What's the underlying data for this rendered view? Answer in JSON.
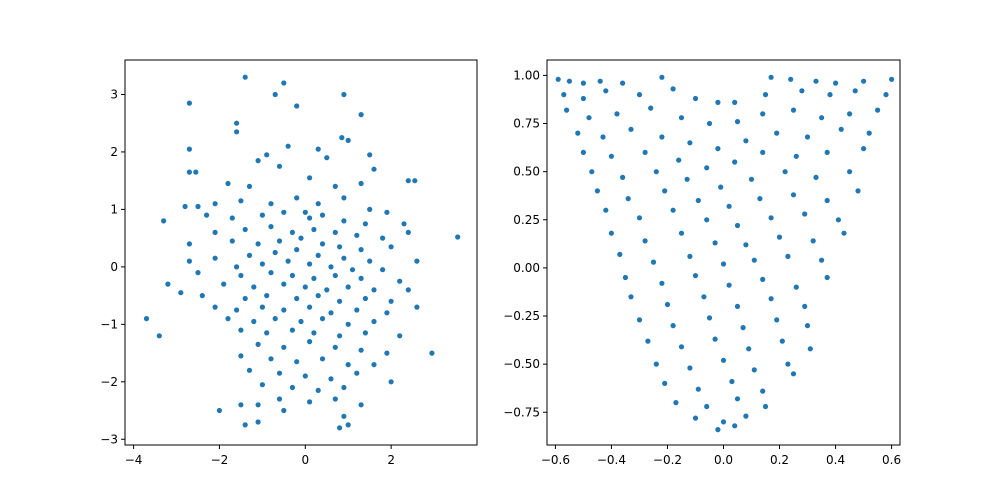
{
  "chart_data": [
    {
      "type": "scatter",
      "title": "",
      "xlabel": "",
      "ylabel": "",
      "xlim": [
        -4.2,
        4.0
      ],
      "ylim": [
        -3.1,
        3.6
      ],
      "xticks": [
        -4,
        -2,
        0,
        2
      ],
      "xtick_labels": [
        "−4",
        "−2",
        "0",
        "2"
      ],
      "yticks": [
        -3,
        -2,
        -1,
        0,
        1,
        2,
        3
      ],
      "ytick_labels": [
        "−3",
        "−2",
        "−1",
        "0",
        "1",
        "2",
        "3"
      ],
      "grid": false,
      "marker_color": "#1f77b4",
      "points": [
        [
          -1.4,
          3.3
        ],
        [
          -0.5,
          3.2
        ],
        [
          0.9,
          3.0
        ],
        [
          -2.7,
          2.85
        ],
        [
          -0.7,
          3.0
        ],
        [
          -0.2,
          2.8
        ],
        [
          1.3,
          2.65
        ],
        [
          -1.6,
          2.5
        ],
        [
          -1.6,
          2.35
        ],
        [
          -2.7,
          2.05
        ],
        [
          0.85,
          2.25
        ],
        [
          1.0,
          2.2
        ],
        [
          -0.9,
          1.95
        ],
        [
          -0.4,
          2.1
        ],
        [
          0.3,
          2.05
        ],
        [
          1.5,
          1.95
        ],
        [
          -1.1,
          1.85
        ],
        [
          -2.7,
          1.65
        ],
        [
          -2.55,
          1.65
        ],
        [
          -0.6,
          1.75
        ],
        [
          0.5,
          1.9
        ],
        [
          1.6,
          1.7
        ],
        [
          2.4,
          1.5
        ],
        [
          2.55,
          1.5
        ],
        [
          -1.8,
          1.45
        ],
        [
          -1.3,
          1.4
        ],
        [
          0.1,
          1.55
        ],
        [
          0.7,
          1.4
        ],
        [
          1.3,
          1.45
        ],
        [
          -2.8,
          1.05
        ],
        [
          -2.5,
          1.05
        ],
        [
          -2.1,
          1.1
        ],
        [
          -1.5,
          1.15
        ],
        [
          -0.8,
          1.1
        ],
        [
          -0.2,
          1.2
        ],
        [
          0.3,
          1.1
        ],
        [
          0.9,
          1.2
        ],
        [
          1.5,
          1.0
        ],
        [
          1.9,
          0.95
        ],
        [
          -3.3,
          0.8
        ],
        [
          -2.3,
          0.9
        ],
        [
          -1.7,
          0.85
        ],
        [
          -1.0,
          0.9
        ],
        [
          -0.5,
          0.95
        ],
        [
          0.0,
          0.95
        ],
        [
          0.1,
          0.85
        ],
        [
          0.4,
          0.9
        ],
        [
          0.9,
          0.8
        ],
        [
          1.4,
          0.75
        ],
        [
          2.3,
          0.75
        ],
        [
          2.4,
          0.6
        ],
        [
          3.55,
          0.52
        ],
        [
          -2.1,
          0.6
        ],
        [
          -1.4,
          0.65
        ],
        [
          -0.8,
          0.7
        ],
        [
          -0.3,
          0.6
        ],
        [
          0.2,
          0.65
        ],
        [
          0.7,
          0.6
        ],
        [
          1.2,
          0.55
        ],
        [
          1.8,
          0.5
        ],
        [
          -2.7,
          0.4
        ],
        [
          -1.7,
          0.45
        ],
        [
          -1.1,
          0.4
        ],
        [
          -0.6,
          0.45
        ],
        [
          -0.1,
          0.5
        ],
        [
          0.4,
          0.4
        ],
        [
          0.8,
          0.35
        ],
        [
          1.3,
          0.3
        ],
        [
          2.0,
          0.35
        ],
        [
          -2.1,
          0.15
        ],
        [
          -1.3,
          0.2
        ],
        [
          -0.7,
          0.25
        ],
        [
          -0.2,
          0.3
        ],
        [
          0.3,
          0.2
        ],
        [
          0.9,
          0.15
        ],
        [
          1.5,
          0.1
        ],
        [
          2.6,
          0.1
        ],
        [
          -2.7,
          0.1
        ],
        [
          -1.6,
          0.0
        ],
        [
          -1.0,
          0.05
        ],
        [
          -0.4,
          0.1
        ],
        [
          0.1,
          0.05
        ],
        [
          0.6,
          0.0
        ],
        [
          1.1,
          -0.05
        ],
        [
          1.8,
          -0.05
        ],
        [
          -2.5,
          -0.1
        ],
        [
          -1.5,
          -0.15
        ],
        [
          -0.8,
          -0.1
        ],
        [
          -0.3,
          -0.15
        ],
        [
          0.2,
          -0.2
        ],
        [
          0.7,
          -0.15
        ],
        [
          1.3,
          -0.2
        ],
        [
          2.2,
          -0.25
        ],
        [
          -3.2,
          -0.3
        ],
        [
          -1.9,
          -0.3
        ],
        [
          -1.2,
          -0.35
        ],
        [
          -0.5,
          -0.3
        ],
        [
          0.0,
          -0.35
        ],
        [
          0.5,
          -0.4
        ],
        [
          1.0,
          -0.35
        ],
        [
          1.6,
          -0.4
        ],
        [
          2.4,
          -0.4
        ],
        [
          -2.4,
          -0.5
        ],
        [
          -1.4,
          -0.55
        ],
        [
          -0.9,
          -0.5
        ],
        [
          -0.2,
          -0.55
        ],
        [
          0.3,
          -0.5
        ],
        [
          0.8,
          -0.6
        ],
        [
          1.4,
          -0.55
        ],
        [
          2.0,
          -0.6
        ],
        [
          -2.9,
          -0.45
        ],
        [
          -2.1,
          -0.7
        ],
        [
          -1.6,
          -0.75
        ],
        [
          -1.0,
          -0.7
        ],
        [
          -0.5,
          -0.75
        ],
        [
          0.1,
          -0.7
        ],
        [
          0.6,
          -0.8
        ],
        [
          1.2,
          -0.75
        ],
        [
          1.9,
          -0.8
        ],
        [
          2.6,
          -0.7
        ],
        [
          -1.8,
          -0.9
        ],
        [
          -1.2,
          -0.95
        ],
        [
          -0.7,
          -0.9
        ],
        [
          -0.1,
          -0.95
        ],
        [
          0.4,
          -0.9
        ],
        [
          1.0,
          -1.0
        ],
        [
          1.6,
          -0.95
        ],
        [
          -3.7,
          -0.9
        ],
        [
          -1.5,
          -1.1
        ],
        [
          -0.9,
          -1.15
        ],
        [
          -0.3,
          -1.1
        ],
        [
          0.2,
          -1.15
        ],
        [
          0.8,
          -1.2
        ],
        [
          1.4,
          -1.15
        ],
        [
          2.2,
          -1.2
        ],
        [
          -3.4,
          -1.2
        ],
        [
          -1.1,
          -1.35
        ],
        [
          -0.5,
          -1.4
        ],
        [
          0.1,
          -1.3
        ],
        [
          0.7,
          -1.4
        ],
        [
          1.3,
          -1.45
        ],
        [
          1.9,
          -1.5
        ],
        [
          -1.5,
          -1.55
        ],
        [
          -0.8,
          -1.6
        ],
        [
          -0.2,
          -1.65
        ],
        [
          0.4,
          -1.6
        ],
        [
          1.0,
          -1.7
        ],
        [
          1.6,
          -1.7
        ],
        [
          2.95,
          -1.5
        ],
        [
          -1.3,
          -1.8
        ],
        [
          -0.6,
          -1.85
        ],
        [
          0.0,
          -1.9
        ],
        [
          0.6,
          -1.95
        ],
        [
          1.2,
          -1.85
        ],
        [
          2.0,
          -2.0
        ],
        [
          -1.0,
          -2.05
        ],
        [
          -0.3,
          -2.1
        ],
        [
          0.3,
          -2.15
        ],
        [
          0.9,
          -2.1
        ],
        [
          -0.6,
          -2.3
        ],
        [
          0.1,
          -2.35
        ],
        [
          0.7,
          -2.3
        ],
        [
          -2.0,
          -2.5
        ],
        [
          -0.5,
          -2.5
        ],
        [
          1.3,
          -2.4
        ],
        [
          -1.5,
          -2.4
        ],
        [
          -1.1,
          -2.4
        ],
        [
          0.9,
          -2.6
        ],
        [
          -1.4,
          -2.75
        ],
        [
          -1.1,
          -2.7
        ],
        [
          0.8,
          -2.8
        ],
        [
          1.0,
          -2.75
        ]
      ]
    },
    {
      "type": "scatter",
      "title": "",
      "xlabel": "",
      "ylabel": "",
      "xlim": [
        -0.63,
        0.63
      ],
      "ylim": [
        -0.92,
        1.08
      ],
      "xticks": [
        -0.6,
        -0.4,
        -0.2,
        0.0,
        0.2,
        0.4,
        0.6
      ],
      "xtick_labels": [
        "−0.6",
        "−0.4",
        "−0.2",
        "0.0",
        "0.2",
        "0.4",
        "0.6"
      ],
      "yticks": [
        -0.75,
        -0.5,
        -0.25,
        0.0,
        0.25,
        0.5,
        0.75,
        1.0
      ],
      "ytick_labels": [
        "−0.75",
        "−0.50",
        "−0.25",
        "0.00",
        "0.25",
        "0.50",
        "0.75",
        "1.00"
      ],
      "grid": false,
      "marker_color": "#1f77b4",
      "points": [
        [
          -0.59,
          0.98
        ],
        [
          -0.55,
          0.97
        ],
        [
          -0.5,
          0.96
        ],
        [
          -0.44,
          0.97
        ],
        [
          -0.36,
          0.96
        ],
        [
          -0.22,
          0.99
        ],
        [
          0.17,
          0.99
        ],
        [
          0.24,
          0.98
        ],
        [
          0.33,
          0.97
        ],
        [
          0.4,
          0.96
        ],
        [
          0.5,
          0.97
        ],
        [
          0.6,
          0.98
        ],
        [
          -0.57,
          0.9
        ],
        [
          -0.5,
          0.88
        ],
        [
          -0.42,
          0.92
        ],
        [
          -0.3,
          0.9
        ],
        [
          -0.18,
          0.93
        ],
        [
          -0.1,
          0.88
        ],
        [
          -0.02,
          0.86
        ],
        [
          0.04,
          0.86
        ],
        [
          0.15,
          0.9
        ],
        [
          0.28,
          0.92
        ],
        [
          0.38,
          0.9
        ],
        [
          0.47,
          0.92
        ],
        [
          0.58,
          0.9
        ],
        [
          -0.56,
          0.82
        ],
        [
          -0.48,
          0.78
        ],
        [
          -0.38,
          0.8
        ],
        [
          -0.26,
          0.83
        ],
        [
          -0.15,
          0.78
        ],
        [
          -0.05,
          0.75
        ],
        [
          0.05,
          0.76
        ],
        [
          0.14,
          0.8
        ],
        [
          0.25,
          0.82
        ],
        [
          0.35,
          0.78
        ],
        [
          0.45,
          0.8
        ],
        [
          0.55,
          0.82
        ],
        [
          -0.52,
          0.7
        ],
        [
          -0.43,
          0.68
        ],
        [
          -0.33,
          0.72
        ],
        [
          -0.22,
          0.68
        ],
        [
          -0.12,
          0.65
        ],
        [
          -0.02,
          0.62
        ],
        [
          0.08,
          0.66
        ],
        [
          0.19,
          0.7
        ],
        [
          0.3,
          0.68
        ],
        [
          0.42,
          0.72
        ],
        [
          0.52,
          0.7
        ],
        [
          -0.5,
          0.6
        ],
        [
          -0.4,
          0.58
        ],
        [
          -0.28,
          0.6
        ],
        [
          -0.16,
          0.56
        ],
        [
          -0.06,
          0.52
        ],
        [
          0.04,
          0.55
        ],
        [
          0.14,
          0.6
        ],
        [
          0.26,
          0.58
        ],
        [
          0.37,
          0.6
        ],
        [
          0.5,
          0.62
        ],
        [
          -0.47,
          0.5
        ],
        [
          -0.36,
          0.47
        ],
        [
          -0.24,
          0.5
        ],
        [
          -0.13,
          0.46
        ],
        [
          -0.01,
          0.42
        ],
        [
          0.1,
          0.46
        ],
        [
          0.22,
          0.5
        ],
        [
          0.33,
          0.47
        ],
        [
          0.45,
          0.5
        ],
        [
          -0.45,
          0.4
        ],
        [
          -0.34,
          0.36
        ],
        [
          -0.21,
          0.4
        ],
        [
          -0.09,
          0.35
        ],
        [
          0.02,
          0.32
        ],
        [
          0.13,
          0.36
        ],
        [
          0.25,
          0.38
        ],
        [
          0.37,
          0.35
        ],
        [
          0.48,
          0.4
        ],
        [
          -0.42,
          0.3
        ],
        [
          -0.3,
          0.26
        ],
        [
          -0.18,
          0.3
        ],
        [
          -0.06,
          0.25
        ],
        [
          0.05,
          0.22
        ],
        [
          0.17,
          0.26
        ],
        [
          0.29,
          0.28
        ],
        [
          0.41,
          0.25
        ],
        [
          -0.4,
          0.18
        ],
        [
          -0.28,
          0.14
        ],
        [
          -0.15,
          0.18
        ],
        [
          -0.03,
          0.13
        ],
        [
          0.08,
          0.12
        ],
        [
          0.2,
          0.16
        ],
        [
          0.32,
          0.14
        ],
        [
          0.43,
          0.18
        ],
        [
          -0.37,
          0.07
        ],
        [
          -0.25,
          0.03
        ],
        [
          -0.12,
          0.06
        ],
        [
          0.0,
          0.02
        ],
        [
          0.11,
          0.04
        ],
        [
          0.23,
          0.06
        ],
        [
          0.35,
          0.04
        ],
        [
          -0.35,
          -0.05
        ],
        [
          -0.22,
          -0.08
        ],
        [
          -0.1,
          -0.04
        ],
        [
          0.02,
          -0.09
        ],
        [
          0.14,
          -0.06
        ],
        [
          0.26,
          -0.1
        ],
        [
          0.37,
          -0.05
        ],
        [
          -0.33,
          -0.15
        ],
        [
          -0.2,
          -0.19
        ],
        [
          -0.07,
          -0.15
        ],
        [
          0.05,
          -0.2
        ],
        [
          0.17,
          -0.16
        ],
        [
          0.29,
          -0.2
        ],
        [
          -0.3,
          -0.27
        ],
        [
          -0.18,
          -0.3
        ],
        [
          -0.05,
          -0.26
        ],
        [
          0.07,
          -0.31
        ],
        [
          0.19,
          -0.27
        ],
        [
          0.3,
          -0.3
        ],
        [
          -0.27,
          -0.38
        ],
        [
          -0.15,
          -0.41
        ],
        [
          -0.03,
          -0.37
        ],
        [
          0.09,
          -0.42
        ],
        [
          0.21,
          -0.38
        ],
        [
          0.31,
          -0.42
        ],
        [
          -0.24,
          -0.5
        ],
        [
          -0.12,
          -0.52
        ],
        [
          0.0,
          -0.48
        ],
        [
          0.11,
          -0.53
        ],
        [
          0.23,
          -0.5
        ],
        [
          -0.21,
          -0.6
        ],
        [
          -0.09,
          -0.63
        ],
        [
          0.03,
          -0.59
        ],
        [
          0.14,
          -0.64
        ],
        [
          0.25,
          -0.55
        ],
        [
          -0.17,
          -0.7
        ],
        [
          -0.06,
          -0.72
        ],
        [
          0.05,
          -0.68
        ],
        [
          0.15,
          -0.72
        ],
        [
          -0.1,
          -0.78
        ],
        [
          0.0,
          -0.8
        ],
        [
          0.08,
          -0.77
        ],
        [
          -0.02,
          -0.84
        ],
        [
          0.04,
          -0.82
        ]
      ]
    }
  ]
}
